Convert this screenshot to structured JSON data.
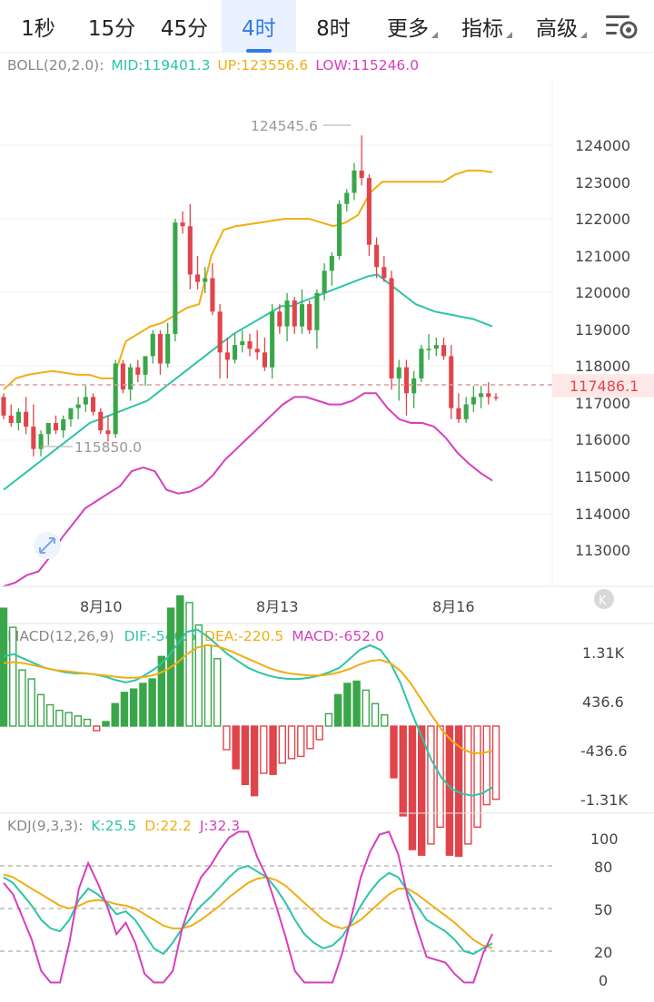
{
  "tabs": [
    {
      "label": "1秒",
      "active": false,
      "dropdown": false
    },
    {
      "label": "15分",
      "active": false,
      "dropdown": false
    },
    {
      "label": "45分",
      "active": false,
      "dropdown": false
    },
    {
      "label": "4时",
      "active": true,
      "dropdown": false
    },
    {
      "label": "8时",
      "active": false,
      "dropdown": false
    },
    {
      "label": "更多",
      "active": false,
      "dropdown": true
    },
    {
      "label": "指标",
      "active": false,
      "dropdown": true
    },
    {
      "label": "高级",
      "active": false,
      "dropdown": true
    }
  ],
  "settings_icon": "chart-settings-icon",
  "colors": {
    "up": "#3aa64a",
    "down": "#e0454b",
    "boll_mid": "#2ec4a8",
    "boll_up": "#efae12",
    "boll_low": "#d63fbe",
    "macd_dif": "#2ec4a8",
    "macd_dea": "#efae12",
    "kdj_k": "#2ec4a8",
    "kdj_d": "#efae12",
    "kdj_j": "#d63fbe",
    "last_price": "#e0454b"
  },
  "boll": {
    "label": "BOLL(20,2.0):",
    "mid": "MID:119401.3",
    "up": "UP:123556.6",
    "low": "LOW:115246.0"
  },
  "macd": {
    "label": "MACD(12,26,9)",
    "dif": "DIF:-546.5",
    "dea": "DEA:-220.5",
    "macd": "MACD:-652.0"
  },
  "kdj": {
    "label": "KDJ(9,3,3):",
    "k": "K:25.5",
    "d": "D:22.2",
    "j": "J:32.3"
  },
  "price_axis": [
    "124000",
    "123000",
    "122000",
    "121000",
    "120000",
    "119000",
    "118000",
    "117000",
    "116000",
    "115000",
    "114000",
    "113000"
  ],
  "macd_axis": [
    "1.31K",
    "436.6",
    "-436.6",
    "-1.31K"
  ],
  "kdj_axis": [
    "100",
    "80",
    "50",
    "20",
    "0"
  ],
  "date_labels": [
    "8月10",
    "8月13",
    "8月16"
  ],
  "last_price": "117486.1",
  "high_marker": "124545.6",
  "low_marker": "115850.0",
  "reset_icon": "zoom-reset-icon",
  "expand_icon": "expand-arrows-icon",
  "chart_data": {
    "type": "candlestick",
    "title": "",
    "price_range": [
      112400,
      125700
    ],
    "candles": [
      [
        117500,
        117600,
        116900,
        117000
      ],
      [
        117000,
        117300,
        116700,
        116800
      ],
      [
        116800,
        117200,
        116600,
        117100
      ],
      [
        117100,
        117500,
        116500,
        116700
      ],
      [
        116700,
        117300,
        115900,
        116100
      ],
      [
        116100,
        116600,
        115900,
        116500
      ],
      [
        116500,
        116800,
        116200,
        116800
      ],
      [
        116800,
        117000,
        116500,
        116600
      ],
      [
        116600,
        117000,
        116400,
        116900
      ],
      [
        116900,
        117200,
        116700,
        117200
      ],
      [
        117200,
        117500,
        116900,
        117300
      ],
      [
        117300,
        117800,
        117100,
        117500
      ],
      [
        117500,
        117600,
        117000,
        117100
      ],
      [
        117100,
        117200,
        116500,
        116600
      ],
      [
        116600,
        117000,
        116300,
        116500
      ],
      [
        116500,
        118500,
        116400,
        118400
      ],
      [
        118400,
        118500,
        117600,
        117700
      ],
      [
        117700,
        118400,
        117400,
        118300
      ],
      [
        118300,
        118500,
        117900,
        118100
      ],
      [
        118100,
        118600,
        117800,
        118600
      ],
      [
        118600,
        119300,
        118400,
        119200
      ],
      [
        119200,
        119300,
        118100,
        118400
      ],
      [
        118400,
        119500,
        118300,
        119200
      ],
      [
        119200,
        122300,
        119000,
        122200
      ],
      [
        122200,
        122500,
        121900,
        122100
      ],
      [
        122100,
        122700,
        120400,
        120800
      ],
      [
        120800,
        121300,
        120400,
        120600
      ],
      [
        120600,
        121000,
        120300,
        120700
      ],
      [
        120700,
        121100,
        119700,
        119800
      ],
      [
        119800,
        120000,
        118000,
        118700
      ],
      [
        118700,
        119100,
        118000,
        118500
      ],
      [
        118500,
        119200,
        118400,
        118900
      ],
      [
        118900,
        119300,
        118700,
        119000
      ],
      [
        119000,
        119200,
        118600,
        118800
      ],
      [
        118800,
        119300,
        118500,
        118700
      ],
      [
        118700,
        119100,
        118200,
        118300
      ],
      [
        118300,
        120000,
        118000,
        119800
      ],
      [
        119800,
        120000,
        119200,
        119400
      ],
      [
        119400,
        120300,
        119000,
        120100
      ],
      [
        120100,
        120200,
        119200,
        119400
      ],
      [
        119400,
        120400,
        119200,
        120000
      ],
      [
        120000,
        120100,
        119200,
        119300
      ],
      [
        119300,
        120400,
        118800,
        120300
      ],
      [
        120300,
        121100,
        120100,
        120900
      ],
      [
        120900,
        121400,
        120500,
        121300
      ],
      [
        121300,
        122800,
        121200,
        122700
      ],
      [
        122700,
        123100,
        122500,
        123000
      ],
      [
        123000,
        123800,
        122800,
        123600
      ],
      [
        123600,
        124546,
        123200,
        123400
      ],
      [
        123400,
        123500,
        121300,
        121600
      ],
      [
        121600,
        121800,
        120700,
        121000
      ],
      [
        121000,
        121300,
        120600,
        120700
      ],
      [
        120700,
        120900,
        117700,
        118000
      ],
      [
        118000,
        118500,
        117400,
        118300
      ],
      [
        118300,
        118500,
        117000,
        117600
      ],
      [
        117600,
        118200,
        117200,
        118000
      ],
      [
        118000,
        118900,
        117900,
        118800
      ],
      [
        118800,
        119200,
        118500,
        118800
      ],
      [
        118800,
        119100,
        118600,
        118900
      ],
      [
        118900,
        119100,
        118500,
        118600
      ],
      [
        118600,
        118900,
        116900,
        117200
      ],
      [
        117200,
        117600,
        116800,
        116900
      ],
      [
        116900,
        117500,
        116800,
        117300
      ],
      [
        117300,
        117800,
        117100,
        117500
      ],
      [
        117500,
        117800,
        117200,
        117600
      ],
      [
        117600,
        117900,
        117300,
        117500
      ],
      [
        117500,
        117600,
        117400,
        117486
      ]
    ],
    "boll_mid": [
      115000,
      115200,
      115400,
      115600,
      115800,
      116000,
      116200,
      116400,
      116600,
      116800,
      116900,
      117000,
      117100,
      117200,
      117300,
      117400,
      117600,
      117800,
      118000,
      118200,
      118400,
      118600,
      118800,
      119000,
      119200,
      119350,
      119500,
      119650,
      119800,
      119950,
      119950,
      120050,
      120150,
      120250,
      120350,
      120450,
      120550,
      120650,
      120750,
      120800,
      120600,
      120400,
      120200,
      120000,
      119900,
      119800,
      119750,
      119700,
      119650,
      119600,
      119500,
      119401
    ],
    "boll_up": [
      117700,
      118000,
      118100,
      118150,
      118200,
      118150,
      118100,
      118100,
      118000,
      118000,
      119000,
      119200,
      119400,
      119500,
      119700,
      119900,
      120000,
      121300,
      122000,
      122100,
      122150,
      122200,
      122250,
      122300,
      122300,
      122300,
      122200,
      122100,
      122200,
      122400,
      123000,
      123300,
      123300,
      123300,
      123300,
      123300,
      123300,
      123500,
      123600,
      123600,
      123556
    ],
    "boll_low": [
      112400,
      112500,
      112700,
      112800,
      113200,
      113700,
      114100,
      114500,
      114700,
      114900,
      115100,
      115500,
      115600,
      115500,
      115000,
      114900,
      114950,
      115100,
      115400,
      115800,
      116100,
      116400,
      116700,
      117000,
      117300,
      117500,
      117500,
      117400,
      117300,
      117300,
      117400,
      117600,
      117600,
      117200,
      116900,
      116800,
      116800,
      116700,
      116400,
      116000,
      115700,
      115450,
      115246
    ],
    "macd_hist": [
      1050,
      880,
      500,
      420,
      280,
      190,
      140,
      120,
      90,
      60,
      -40,
      40,
      200,
      300,
      330,
      380,
      420,
      620,
      1050,
      1160,
      1100,
      900,
      720,
      600,
      -210,
      -380,
      -520,
      -620,
      -420,
      -430,
      -330,
      -290,
      -270,
      -200,
      -120,
      110,
      280,
      380,
      400,
      320,
      200,
      100,
      -460,
      -800,
      -1100,
      -1150,
      -1050,
      -900,
      -1150,
      -1160,
      -1050,
      -900,
      -700,
      -652
    ],
    "kdj_k": [
      72,
      68,
      60,
      52,
      42,
      36,
      34,
      42,
      56,
      64,
      60,
      54,
      46,
      48,
      42,
      32,
      22,
      18,
      26,
      36,
      44,
      52,
      58,
      65,
      72,
      78,
      80,
      76,
      72,
      64,
      54,
      42,
      32,
      26,
      22,
      24,
      30,
      40,
      52,
      62,
      70,
      75,
      72,
      62,
      52,
      42,
      38,
      34,
      28,
      20,
      18,
      22,
      25.5
    ],
    "kdj_d": [
      74,
      72,
      68,
      64,
      60,
      56,
      52,
      50,
      52,
      55,
      56,
      55,
      53,
      52,
      50,
      46,
      42,
      38,
      36,
      36,
      38,
      42,
      47,
      52,
      58,
      63,
      68,
      71,
      72,
      70,
      66,
      60,
      54,
      48,
      42,
      38,
      36,
      38,
      42,
      48,
      54,
      60,
      64,
      64,
      60,
      55,
      50,
      45,
      40,
      34,
      28,
      24,
      22.2
    ]
  }
}
